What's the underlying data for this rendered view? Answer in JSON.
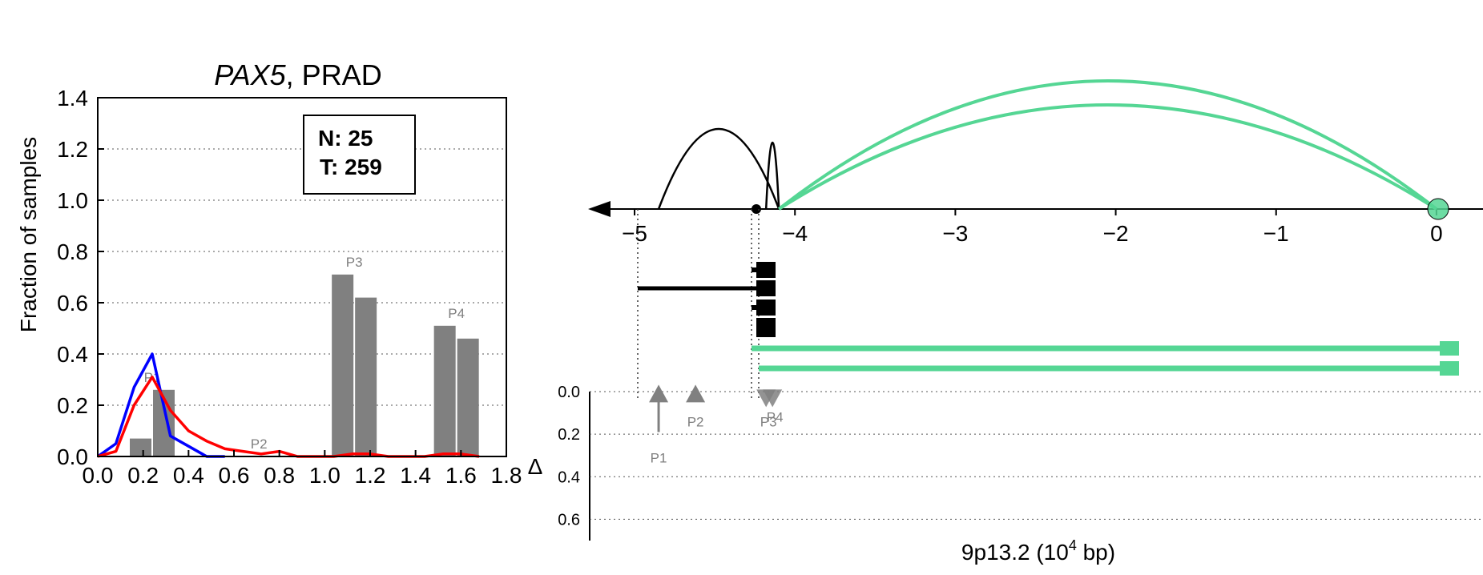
{
  "chart_data": [
    {
      "type": "bar",
      "title_gene": "PAX5",
      "title_rest": ", PRAD",
      "ylabel": "Fraction of samples",
      "xlim": [
        0.0,
        1.8
      ],
      "ylim": [
        0.0,
        1.4
      ],
      "x_ticks": [
        "0.0",
        "0.2",
        "0.4",
        "0.6",
        "0.8",
        "1.0",
        "1.2",
        "1.4",
        "1.6",
        "1.8"
      ],
      "y_ticks": [
        "0.0",
        "0.2",
        "0.4",
        "0.6",
        "0.8",
        "1.0",
        "1.2",
        "1.4"
      ],
      "grid": "horizontal dotted",
      "counts": {
        "normal": "N: 25",
        "tumor": "T: 259"
      },
      "bar_color": "#808080",
      "bars": [
        {
          "label": "P1",
          "normal": 0.07,
          "tumor": 0.26,
          "x": 0.24
        },
        {
          "label": "P2",
          "normal": 0.0,
          "tumor": 0.0,
          "x": 0.71
        },
        {
          "label": "P3",
          "normal": 0.71,
          "tumor": 0.62,
          "x": 1.13
        },
        {
          "label": "P4",
          "normal": 0.51,
          "tumor": 0.46,
          "x": 1.58
        }
      ],
      "series": [
        {
          "name": "normal",
          "color": "#0000ff",
          "x": [
            0.0,
            0.08,
            0.16,
            0.24,
            0.32,
            0.4,
            0.48,
            0.56
          ],
          "y": [
            0.0,
            0.05,
            0.27,
            0.4,
            0.08,
            0.04,
            0.0,
            0.0
          ]
        },
        {
          "name": "tumor",
          "color": "#ff0000",
          "x": [
            0.0,
            0.08,
            0.16,
            0.24,
            0.32,
            0.4,
            0.48,
            0.56,
            0.64,
            0.72,
            0.8,
            0.88,
            0.96,
            1.04,
            1.12,
            1.2,
            1.28,
            1.36,
            1.44,
            1.52,
            1.6,
            1.68
          ],
          "y": [
            0.0,
            0.02,
            0.2,
            0.31,
            0.18,
            0.1,
            0.06,
            0.03,
            0.02,
            0.01,
            0.02,
            0.0,
            0.0,
            0.0,
            0.01,
            0.01,
            0.0,
            0.0,
            0.0,
            0.01,
            0.01,
            0.0
          ]
        }
      ]
    },
    {
      "type": "line",
      "xlabel": "9p13.2 (10",
      "xlabel_sup": "4",
      "xlabel_tail": " bp)",
      "x_ticks": [
        {
          "value": -5,
          "label": "−5"
        },
        {
          "value": -4,
          "label": "−4"
        },
        {
          "value": -3,
          "label": "−3"
        },
        {
          "value": -2,
          "label": "−2"
        },
        {
          "value": -1,
          "label": "−1"
        },
        {
          "value": 0,
          "label": "0"
        }
      ],
      "xlim": [
        -5.2,
        0.3
      ],
      "delta_label": "Δ",
      "delta_ticks": [
        "0.0",
        "0.2",
        "0.4",
        "0.6"
      ],
      "delta_lim": [
        0.0,
        0.7
      ],
      "colors": {
        "black": "#000000",
        "green": "#55d694",
        "gray": "#808080"
      },
      "arcs": [
        {
          "from": -4.1,
          "to": -4.85,
          "height": 1.0,
          "color": "#000000"
        },
        {
          "from": -4.1,
          "to": -4.18,
          "height": 0.83,
          "color": "#000000"
        },
        {
          "from": -4.1,
          "to": 0.0,
          "height": 1.6,
          "color": "#55d694"
        },
        {
          "from": -4.1,
          "to": 0.0,
          "height": 1.3,
          "color": "#55d694"
        }
      ],
      "promoters": [
        {
          "label": "P1",
          "x": -4.85,
          "delta": 0.19,
          "direction": "up"
        },
        {
          "label": "P2",
          "x": -4.62,
          "delta": 0.02,
          "direction": "up"
        },
        {
          "label": "P3",
          "x": -4.18,
          "delta": 0.04,
          "direction": "down"
        },
        {
          "label": "P4",
          "x": -4.14,
          "delta": 0.0,
          "direction": "down"
        }
      ]
    }
  ]
}
